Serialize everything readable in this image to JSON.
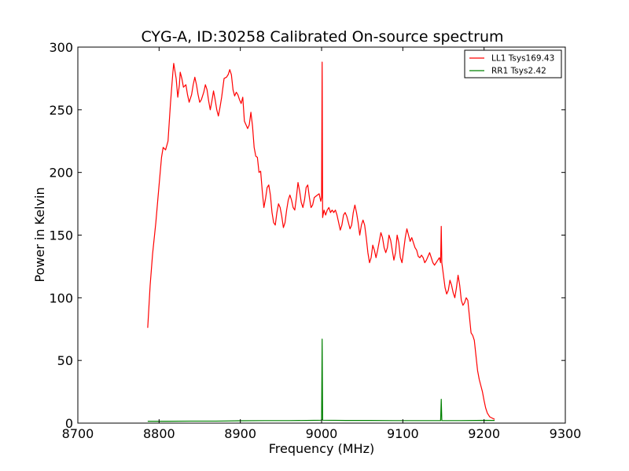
{
  "chart_data": {
    "type": "line",
    "title": "CYG-A, ID:30258 Calibrated On-source spectrum",
    "xlabel": "Frequency (MHz)",
    "ylabel": "Power in Kelvin",
    "xlim": [
      8700,
      9300
    ],
    "ylim": [
      0,
      300
    ],
    "x_ticks": [
      "8700",
      "8800",
      "8900",
      "9000",
      "9100",
      "9200",
      "9300"
    ],
    "y_ticks": [
      "0",
      "50",
      "100",
      "150",
      "200",
      "250",
      "300"
    ],
    "grid": false,
    "legend_position": "top-right",
    "series": [
      {
        "name": "LL1 Tsys169.43",
        "color": "#ff0000",
        "points": [
          [
            8786,
            76
          ],
          [
            8789,
            110
          ],
          [
            8792,
            135
          ],
          [
            8796,
            160
          ],
          [
            8800,
            190
          ],
          [
            8803,
            212
          ],
          [
            8805,
            220
          ],
          [
            8808,
            218
          ],
          [
            8811,
            225
          ],
          [
            8814,
            255
          ],
          [
            8817,
            280
          ],
          [
            8818,
            287
          ],
          [
            8821,
            275
          ],
          [
            8823,
            260
          ],
          [
            8825,
            270
          ],
          [
            8826,
            280
          ],
          [
            8828,
            275
          ],
          [
            8830,
            268
          ],
          [
            8833,
            270
          ],
          [
            8835,
            262
          ],
          [
            8837,
            256
          ],
          [
            8840,
            262
          ],
          [
            8842,
            270
          ],
          [
            8844,
            276
          ],
          [
            8846,
            270
          ],
          [
            8848,
            262
          ],
          [
            8850,
            256
          ],
          [
            8852,
            258
          ],
          [
            8855,
            264
          ],
          [
            8857,
            270
          ],
          [
            8859,
            266
          ],
          [
            8861,
            257
          ],
          [
            8863,
            250
          ],
          [
            8865,
            257
          ],
          [
            8867,
            265
          ],
          [
            8869,
            258
          ],
          [
            8871,
            250
          ],
          [
            8873,
            245
          ],
          [
            8875,
            252
          ],
          [
            8877,
            260
          ],
          [
            8880,
            275
          ],
          [
            8883,
            276
          ],
          [
            8885,
            278
          ],
          [
            8887,
            282
          ],
          [
            8889,
            278
          ],
          [
            8891,
            266
          ],
          [
            8893,
            261
          ],
          [
            8895,
            264
          ],
          [
            8897,
            262
          ],
          [
            8899,
            258
          ],
          [
            8901,
            255
          ],
          [
            8903,
            260
          ],
          [
            8905,
            241
          ],
          [
            8907,
            238
          ],
          [
            8909,
            235
          ],
          [
            8911,
            238
          ],
          [
            8913,
            248
          ],
          [
            8915,
            237
          ],
          [
            8917,
            220
          ],
          [
            8919,
            213
          ],
          [
            8921,
            212
          ],
          [
            8923,
            200
          ],
          [
            8925,
            201
          ],
          [
            8927,
            185
          ],
          [
            8929,
            172
          ],
          [
            8931,
            179
          ],
          [
            8933,
            188
          ],
          [
            8935,
            190
          ],
          [
            8937,
            182
          ],
          [
            8939,
            168
          ],
          [
            8941,
            160
          ],
          [
            8943,
            158
          ],
          [
            8945,
            168
          ],
          [
            8947,
            175
          ],
          [
            8949,
            172
          ],
          [
            8951,
            165
          ],
          [
            8953,
            156
          ],
          [
            8955,
            160
          ],
          [
            8957,
            170
          ],
          [
            8959,
            178
          ],
          [
            8961,
            182
          ],
          [
            8963,
            178
          ],
          [
            8965,
            172
          ],
          [
            8967,
            170
          ],
          [
            8969,
            180
          ],
          [
            8971,
            192
          ],
          [
            8973,
            185
          ],
          [
            8975,
            176
          ],
          [
            8977,
            172
          ],
          [
            8979,
            178
          ],
          [
            8981,
            188
          ],
          [
            8983,
            190
          ],
          [
            8985,
            180
          ],
          [
            8987,
            172
          ],
          [
            8989,
            174
          ],
          [
            8991,
            180
          ],
          [
            8993,
            181
          ],
          [
            8995,
            182
          ],
          [
            8997,
            183
          ],
          [
            8999,
            177
          ],
          [
            9000,
            180
          ],
          [
            9000.7,
            288
          ],
          [
            9001.3,
            164
          ],
          [
            9003,
            170
          ],
          [
            9005,
            166
          ],
          [
            9007,
            170
          ],
          [
            9009,
            172
          ],
          [
            9011,
            168
          ],
          [
            9013,
            170
          ],
          [
            9015,
            168
          ],
          [
            9017,
            170
          ],
          [
            9019,
            166
          ],
          [
            9021,
            160
          ],
          [
            9023,
            154
          ],
          [
            9025,
            158
          ],
          [
            9027,
            166
          ],
          [
            9029,
            168
          ],
          [
            9031,
            165
          ],
          [
            9033,
            160
          ],
          [
            9035,
            155
          ],
          [
            9037,
            158
          ],
          [
            9039,
            168
          ],
          [
            9041,
            174
          ],
          [
            9043,
            168
          ],
          [
            9045,
            160
          ],
          [
            9047,
            150
          ],
          [
            9049,
            158
          ],
          [
            9051,
            162
          ],
          [
            9053,
            158
          ],
          [
            9055,
            148
          ],
          [
            9057,
            136
          ],
          [
            9059,
            128
          ],
          [
            9061,
            132
          ],
          [
            9063,
            142
          ],
          [
            9065,
            138
          ],
          [
            9067,
            132
          ],
          [
            9069,
            138
          ],
          [
            9071,
            145
          ],
          [
            9073,
            152
          ],
          [
            9075,
            148
          ],
          [
            9077,
            140
          ],
          [
            9079,
            136
          ],
          [
            9081,
            140
          ],
          [
            9083,
            150
          ],
          [
            9085,
            146
          ],
          [
            9087,
            138
          ],
          [
            9089,
            130
          ],
          [
            9091,
            136
          ],
          [
            9093,
            150
          ],
          [
            9095,
            144
          ],
          [
            9097,
            132
          ],
          [
            9099,
            128
          ],
          [
            9101,
            138
          ],
          [
            9103,
            148
          ],
          [
            9105,
            155
          ],
          [
            9107,
            150
          ],
          [
            9109,
            145
          ],
          [
            9111,
            148
          ],
          [
            9113,
            144
          ],
          [
            9115,
            140
          ],
          [
            9117,
            138
          ],
          [
            9119,
            133
          ],
          [
            9121,
            132
          ],
          [
            9123,
            134
          ],
          [
            9125,
            132
          ],
          [
            9127,
            128
          ],
          [
            9129,
            130
          ],
          [
            9131,
            133
          ],
          [
            9133,
            136
          ],
          [
            9135,
            132
          ],
          [
            9137,
            128
          ],
          [
            9139,
            126
          ],
          [
            9141,
            128
          ],
          [
            9143,
            130
          ],
          [
            9145,
            132
          ],
          [
            9146.5,
            128
          ],
          [
            9147.3,
            157
          ],
          [
            9148,
            128
          ],
          [
            9150,
            118
          ],
          [
            9152,
            108
          ],
          [
            9154,
            103
          ],
          [
            9156,
            106
          ],
          [
            9158,
            114
          ],
          [
            9160,
            110
          ],
          [
            9162,
            104
          ],
          [
            9164,
            100
          ],
          [
            9166,
            108
          ],
          [
            9168,
            118
          ],
          [
            9170,
            110
          ],
          [
            9172,
            98
          ],
          [
            9174,
            94
          ],
          [
            9176,
            96
          ],
          [
            9178,
            100
          ],
          [
            9180,
            98
          ],
          [
            9182,
            85
          ],
          [
            9184,
            72
          ],
          [
            9186,
            70
          ],
          [
            9188,
            66
          ],
          [
            9190,
            54
          ],
          [
            9192,
            42
          ],
          [
            9194,
            35
          ],
          [
            9196,
            30
          ],
          [
            9198,
            25
          ],
          [
            9200,
            18
          ],
          [
            9202,
            12
          ],
          [
            9204,
            8
          ],
          [
            9207,
            5
          ],
          [
            9210,
            4
          ],
          [
            9213,
            3
          ]
        ]
      },
      {
        "name": "RR1 Tsys2.42",
        "color": "#008000",
        "points": [
          [
            8786,
            1.5
          ],
          [
            8810,
            1.5
          ],
          [
            8840,
            1.6
          ],
          [
            8870,
            1.6
          ],
          [
            8900,
            1.9
          ],
          [
            8930,
            2.0
          ],
          [
            8960,
            2.0
          ],
          [
            8990,
            2.2
          ],
          [
            9000,
            2.3
          ],
          [
            9000.7,
            67
          ],
          [
            9001.3,
            2.3
          ],
          [
            9030,
            2.1
          ],
          [
            9060,
            2.1
          ],
          [
            9090,
            2.0
          ],
          [
            9120,
            2.0
          ],
          [
            9146.5,
            2.0
          ],
          [
            9147.3,
            19
          ],
          [
            9148,
            2.0
          ],
          [
            9170,
            2.0
          ],
          [
            9190,
            2.1
          ],
          [
            9200,
            2.2
          ],
          [
            9213,
            2.1
          ]
        ]
      }
    ]
  }
}
